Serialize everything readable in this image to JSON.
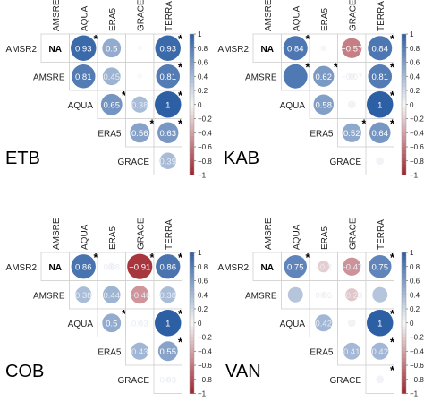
{
  "chart_data": [
    {
      "type": "heatmap",
      "subtype": "correlation-matrix-upper",
      "panel_label": "ETB",
      "columns": [
        "AMSRE",
        "AQUA",
        "ERA5",
        "GRACE",
        "TERRA"
      ],
      "rows": [
        "AMSR2",
        "AMSRE",
        "AQUA",
        "ERA5",
        "GRACE"
      ],
      "na_text": "NA",
      "values": [
        [
          "NA",
          0.93,
          0.5,
          0.02,
          0.93
        ],
        [
          null,
          0.81,
          0.45,
          0.02,
          0.81
        ],
        [
          null,
          null,
          0.65,
          0.38,
          1
        ],
        [
          null,
          null,
          null,
          0.56,
          0.63
        ],
        [
          null,
          null,
          null,
          null,
          0.39
        ]
      ],
      "labels": [
        [
          "NA",
          "0.93",
          "0.5",
          "",
          "0.93"
        ],
        [
          null,
          "0.81",
          "0.45",
          "",
          "0.81"
        ],
        [
          null,
          null,
          "0.65",
          "0.38",
          "1"
        ],
        [
          null,
          null,
          null,
          "0.56",
          "0.63"
        ],
        [
          null,
          null,
          null,
          null,
          "0.39"
        ]
      ],
      "significant": [
        [
          false,
          true,
          false,
          false,
          true
        ],
        [
          null,
          false,
          false,
          false,
          true
        ],
        [
          null,
          null,
          true,
          false,
          true
        ],
        [
          null,
          null,
          null,
          true,
          true
        ],
        [
          null,
          null,
          null,
          null,
          false
        ]
      ],
      "colorbar_ticks": [
        1,
        0.8,
        0.6,
        0.4,
        0.2,
        0,
        -0.2,
        -0.4,
        -0.6,
        -0.8,
        -1
      ],
      "colorbar_labels": [
        "1",
        "0.8",
        "0.6",
        "0.4",
        "0.2",
        "0",
        "−0.2",
        "−0.4",
        "−0.6",
        "−0.8",
        "−1"
      ],
      "value_range": [
        -1,
        1
      ],
      "significance_marker": "*"
    },
    {
      "type": "heatmap",
      "subtype": "correlation-matrix-upper",
      "panel_label": "KAB",
      "columns": [
        "AMSRE",
        "AQUA",
        "ERA5",
        "GRACE",
        "TERRA"
      ],
      "rows": [
        "AMSR2",
        "AMSRE",
        "AQUA",
        "ERA5",
        "GRACE"
      ],
      "na_text": "NA",
      "values": [
        [
          "NA",
          0.84,
          0.05,
          -0.57,
          0.84
        ],
        [
          null,
          0.83,
          0.62,
          -0.07,
          0.81
        ],
        [
          null,
          null,
          0.58,
          0.09,
          1
        ],
        [
          null,
          null,
          null,
          0.52,
          0.64
        ],
        [
          null,
          null,
          null,
          null,
          0.09
        ]
      ],
      "labels": [
        [
          "NA",
          "0.84",
          "",
          "−0.57",
          "0.84"
        ],
        [
          null,
          "",
          "0.62",
          "−0.07",
          "0.81"
        ],
        [
          null,
          null,
          "0.58",
          "",
          "1"
        ],
        [
          null,
          null,
          null,
          "0.52",
          "0.64"
        ],
        [
          null,
          null,
          null,
          null,
          ""
        ]
      ],
      "significant": [
        [
          false,
          true,
          false,
          false,
          true
        ],
        [
          null,
          true,
          true,
          false,
          true
        ],
        [
          null,
          null,
          false,
          false,
          true
        ],
        [
          null,
          null,
          null,
          true,
          true
        ],
        [
          null,
          null,
          null,
          null,
          false
        ]
      ],
      "colorbar_ticks": [
        1,
        0.8,
        0.6,
        0.4,
        0.2,
        0,
        -0.2,
        -0.4,
        -0.6,
        -0.8,
        -1
      ],
      "colorbar_labels": [
        "1",
        "0.8",
        "0.6",
        "0.4",
        "0.2",
        "0",
        "−0.2",
        "−0.4",
        "−0.6",
        "−0.8",
        "−1"
      ],
      "value_range": [
        -1,
        1
      ],
      "significance_marker": "*"
    },
    {
      "type": "heatmap",
      "subtype": "correlation-matrix-upper",
      "panel_label": "COB",
      "columns": [
        "AMSRE",
        "AQUA",
        "ERA5",
        "GRACE",
        "TERRA"
      ],
      "rows": [
        "AMSR2",
        "AMSRE",
        "AQUA",
        "ERA5",
        "GRACE"
      ],
      "na_text": "NA",
      "values": [
        [
          "NA",
          0.86,
          0.08,
          -0.91,
          0.86
        ],
        [
          null,
          0.38,
          0.44,
          -0.46,
          0.38
        ],
        [
          null,
          null,
          0.5,
          0.03,
          1
        ],
        [
          null,
          null,
          null,
          0.43,
          0.55
        ],
        [
          null,
          null,
          null,
          null,
          0.03
        ]
      ],
      "labels": [
        [
          "NA",
          "0.86",
          "0.08",
          "−0.91",
          "0.86"
        ],
        [
          null,
          "0.38",
          "0.44",
          "−0.46",
          "0.38"
        ],
        [
          null,
          null,
          "0.5",
          "0.03",
          "1"
        ],
        [
          null,
          null,
          null,
          "0.43",
          "0.55"
        ],
        [
          null,
          null,
          null,
          null,
          "0.03"
        ]
      ],
      "significant": [
        [
          false,
          true,
          false,
          true,
          true
        ],
        [
          null,
          false,
          false,
          false,
          false
        ],
        [
          null,
          null,
          true,
          false,
          true
        ],
        [
          null,
          null,
          null,
          false,
          true
        ],
        [
          null,
          null,
          null,
          null,
          false
        ]
      ],
      "colorbar_ticks": [
        1,
        0.8,
        0.6,
        0.4,
        0.2,
        0,
        -0.2,
        -0.4,
        -0.6,
        -0.8,
        -1
      ],
      "colorbar_labels": [
        "1",
        "0.8",
        "0.6",
        "0.4",
        "0.2",
        "0",
        "−0.2",
        "−0.4",
        "−0.6",
        "−0.8",
        "−1"
      ],
      "value_range": [
        -1,
        1
      ],
      "significance_marker": "*"
    },
    {
      "type": "heatmap",
      "subtype": "correlation-matrix-upper",
      "panel_label": "VAN",
      "columns": [
        "AMSRE",
        "AQUA",
        "ERA5",
        "GRACE",
        "TERRA"
      ],
      "rows": [
        "AMSR2",
        "AMSRE",
        "AQUA",
        "ERA5",
        "GRACE"
      ],
      "na_text": "NA",
      "values": [
        [
          "NA",
          0.75,
          -0.2,
          -0.47,
          0.75
        ],
        [
          null,
          0.33,
          0.06,
          -0.23,
          0.33
        ],
        [
          null,
          null,
          0.42,
          0.09,
          1
        ],
        [
          null,
          null,
          null,
          0.41,
          0.42
        ],
        [
          null,
          null,
          null,
          null,
          0.09
        ]
      ],
      "labels": [
        [
          "NA",
          "0.75",
          "−0.2",
          "−0.47",
          "0.75"
        ],
        [
          null,
          "",
          "0.06",
          "−0.23",
          ""
        ],
        [
          null,
          null,
          "0.42",
          "",
          "1"
        ],
        [
          null,
          null,
          null,
          "0.41",
          "0.42"
        ],
        [
          null,
          null,
          null,
          null,
          ""
        ]
      ],
      "significant": [
        [
          false,
          true,
          false,
          false,
          true
        ],
        [
          null,
          false,
          false,
          false,
          false
        ],
        [
          null,
          null,
          false,
          false,
          true
        ],
        [
          null,
          null,
          null,
          false,
          true
        ],
        [
          null,
          null,
          null,
          null,
          true
        ]
      ],
      "colorbar_ticks": [
        1,
        0.8,
        0.6,
        0.4,
        0.2,
        0,
        -0.2,
        -0.4,
        -0.6,
        -0.8,
        -1
      ],
      "colorbar_labels": [
        "1",
        "0.8",
        "0.6",
        "0.4",
        "0.2",
        "0",
        "−0.2",
        "−0.4",
        "−0.6",
        "−0.8",
        "−1"
      ],
      "value_range": [
        -1,
        1
      ],
      "significance_marker": "*"
    }
  ]
}
